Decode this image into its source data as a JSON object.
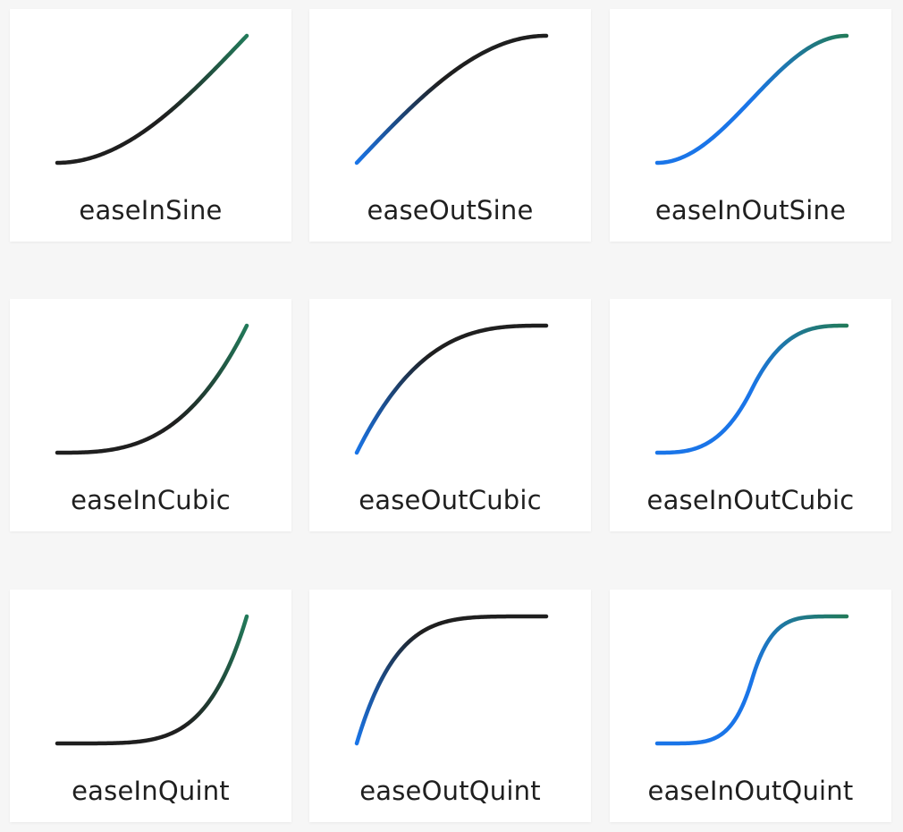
{
  "colors": {
    "ease_in": "#1a75e8",
    "ease_mid": "#1f1f1f",
    "ease_out": "#227a5a"
  },
  "cards": [
    {
      "label": "easeInSine",
      "curve": "easeInSine",
      "gradient": [
        "#1f1f1f",
        "#1f1f1f",
        "#227a5a"
      ]
    },
    {
      "label": "easeOutSine",
      "curve": "easeOutSine",
      "gradient": [
        "#1a75e8",
        "#1f1f1f",
        "#1f1f1f"
      ]
    },
    {
      "label": "easeInOutSine",
      "curve": "easeInOutSine",
      "gradient": [
        "#1a75e8",
        "#1a75e8",
        "#227a5a"
      ]
    },
    {
      "label": "easeInCubic",
      "curve": "easeInCubic",
      "gradient": [
        "#1f1f1f",
        "#1f1f1f",
        "#227a5a"
      ]
    },
    {
      "label": "easeOutCubic",
      "curve": "easeOutCubic",
      "gradient": [
        "#1a75e8",
        "#1f1f1f",
        "#1f1f1f"
      ]
    },
    {
      "label": "easeInOutCubic",
      "curve": "easeInOutCubic",
      "gradient": [
        "#1a75e8",
        "#1a75e8",
        "#227a5a"
      ]
    },
    {
      "label": "easeInQuint",
      "curve": "easeInQuint",
      "gradient": [
        "#1f1f1f",
        "#1f1f1f",
        "#227a5a"
      ]
    },
    {
      "label": "easeOutQuint",
      "curve": "easeOutQuint",
      "gradient": [
        "#1a75e8",
        "#1f1f1f",
        "#1f1f1f"
      ]
    },
    {
      "label": "easeInOutQuint",
      "curve": "easeInOutQuint",
      "gradient": [
        "#1a75e8",
        "#1a75e8",
        "#227a5a"
      ]
    }
  ]
}
